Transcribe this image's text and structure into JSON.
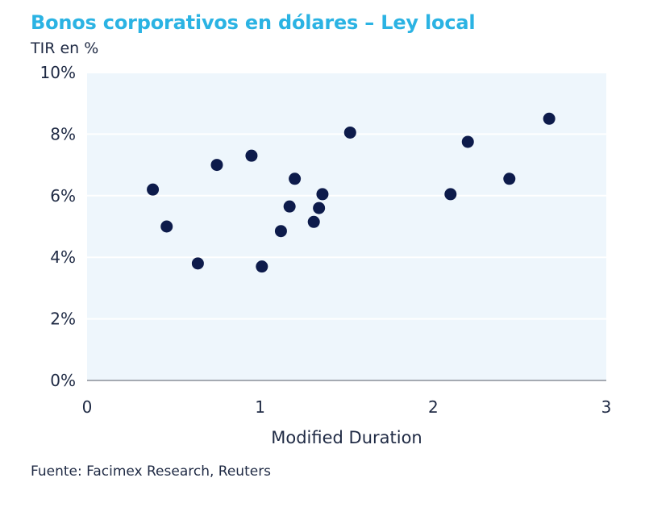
{
  "chart_data": {
    "type": "scatter",
    "title": "Bonos corporativos en dólares – Ley local",
    "ylabel": "TIR en %",
    "xlabel": "Modified Duration",
    "source": "Fuente: Facimex Research, Reuters",
    "xlim": [
      0,
      3
    ],
    "ylim": [
      0,
      10
    ],
    "x_ticks": [
      {
        "value": 0,
        "label": "0"
      },
      {
        "value": 1,
        "label": "1"
      },
      {
        "value": 2,
        "label": "2"
      },
      {
        "value": 3,
        "label": "3"
      }
    ],
    "y_ticks": [
      {
        "value": 0,
        "label": "0%"
      },
      {
        "value": 2,
        "label": "2%"
      },
      {
        "value": 4,
        "label": "4%"
      },
      {
        "value": 6,
        "label": "6%"
      },
      {
        "value": 8,
        "label": "8%"
      },
      {
        "value": 10,
        "label": "10%"
      }
    ],
    "grid": true,
    "colors": {
      "point": "#0d1b4b",
      "plot_bg": "#eef6fc",
      "grid": "#ffffff",
      "axis": "#8a8f99",
      "title": "#2bb3e3",
      "text": "#1f2a44"
    },
    "points": [
      {
        "x": 0.38,
        "y": 6.2
      },
      {
        "x": 0.46,
        "y": 5.0
      },
      {
        "x": 0.64,
        "y": 3.8
      },
      {
        "x": 0.75,
        "y": 7.0
      },
      {
        "x": 0.95,
        "y": 7.3
      },
      {
        "x": 1.01,
        "y": 3.7
      },
      {
        "x": 1.12,
        "y": 4.85
      },
      {
        "x": 1.17,
        "y": 5.65
      },
      {
        "x": 1.2,
        "y": 6.55
      },
      {
        "x": 1.31,
        "y": 5.15
      },
      {
        "x": 1.34,
        "y": 5.6
      },
      {
        "x": 1.36,
        "y": 6.05
      },
      {
        "x": 1.52,
        "y": 8.05
      },
      {
        "x": 2.1,
        "y": 6.05
      },
      {
        "x": 2.2,
        "y": 7.75
      },
      {
        "x": 2.44,
        "y": 6.55
      },
      {
        "x": 2.67,
        "y": 8.5
      }
    ]
  }
}
